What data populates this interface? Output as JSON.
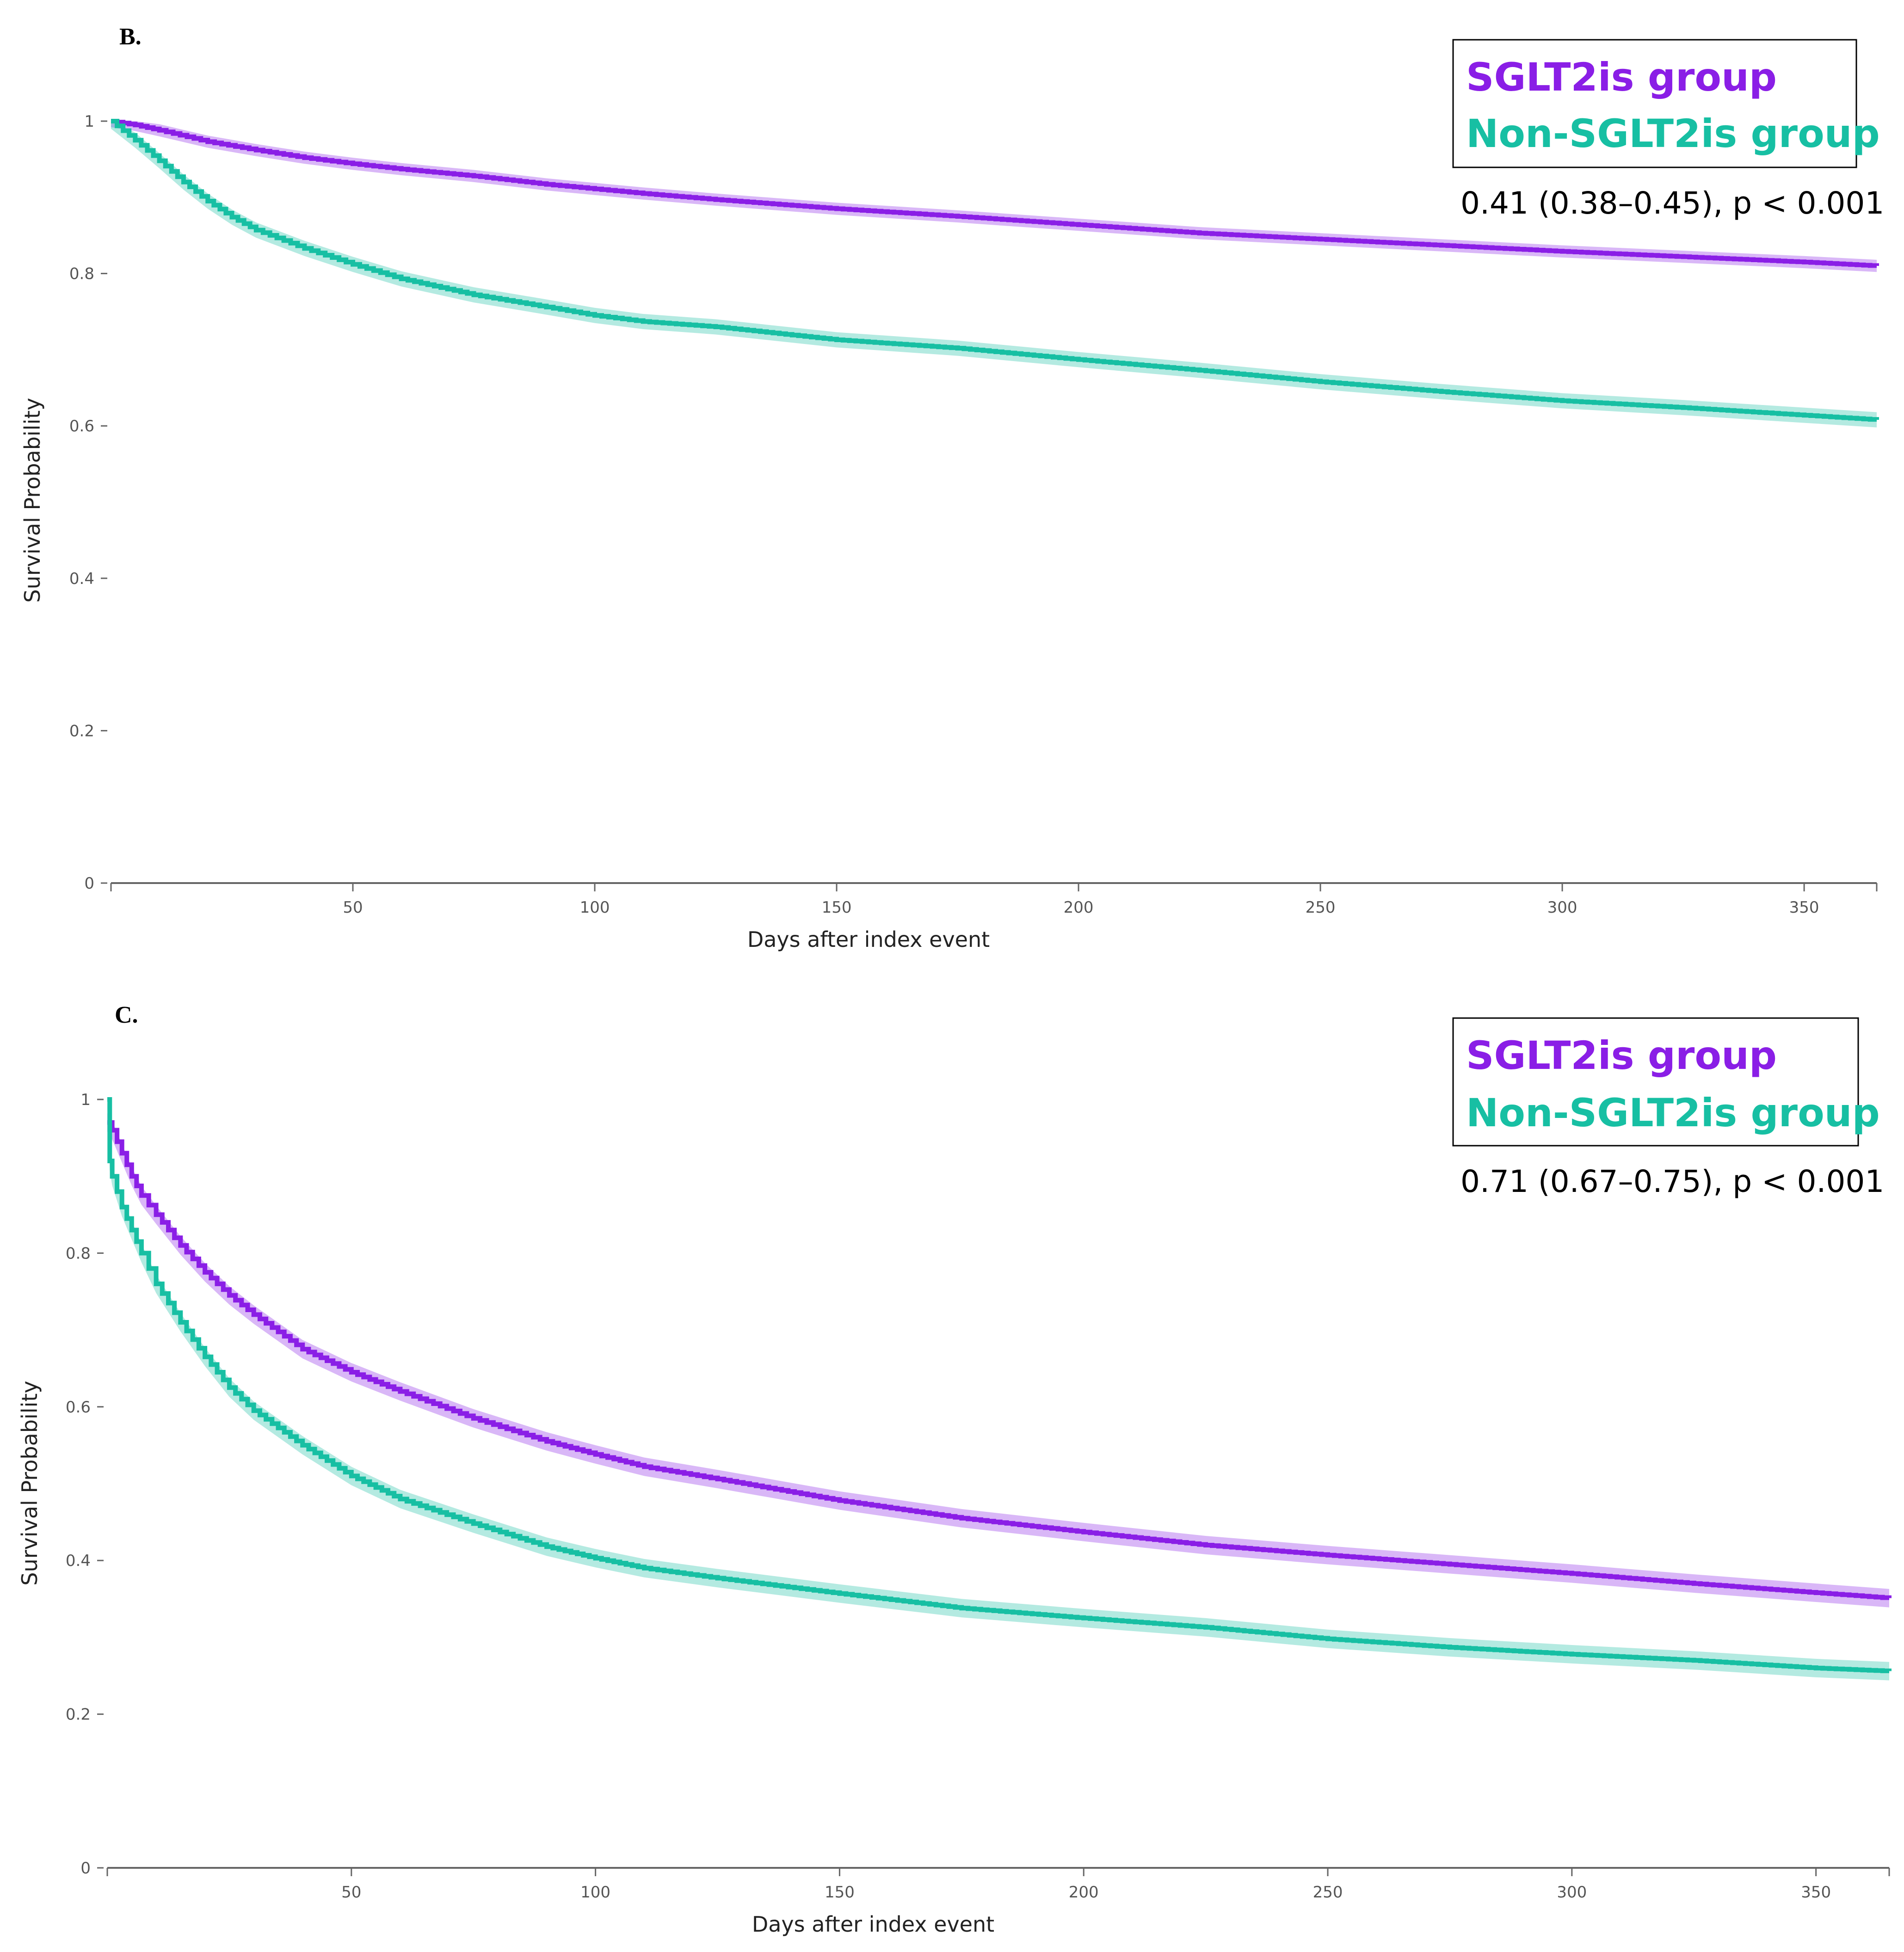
{
  "colors": {
    "sglt2": "#8a1ee6",
    "non_sglt2": "#17bfa3",
    "axis": "#666666"
  },
  "chart_data": [
    {
      "type": "line",
      "panel": "B.",
      "title": "",
      "xlabel": "Days after index event",
      "ylabel": "Survival Probability",
      "xlim": [
        0,
        365
      ],
      "ylim": [
        0,
        1
      ],
      "xticks": [
        50,
        100,
        150,
        200,
        250,
        300,
        350
      ],
      "yticks": [
        0,
        0.2,
        0.4,
        0.6,
        0.8,
        1
      ],
      "ytick_labels": [
        "0",
        "0.2",
        "0.4",
        "0.6",
        "0.8",
        "1"
      ],
      "grid": false,
      "legend": "top-right",
      "hr_text": "0.41 (0.38–0.45), p < 0.001",
      "series": [
        {
          "name": "SGLT2is group",
          "x": [
            0,
            5,
            10,
            20,
            30,
            40,
            50,
            60,
            75,
            90,
            100,
            110,
            125,
            150,
            175,
            200,
            225,
            250,
            275,
            300,
            325,
            350,
            365
          ],
          "y": [
            1.0,
            0.995,
            0.988,
            0.973,
            0.962,
            0.952,
            0.944,
            0.937,
            0.928,
            0.917,
            0.911,
            0.905,
            0.897,
            0.885,
            0.875,
            0.864,
            0.853,
            0.845,
            0.837,
            0.829,
            0.822,
            0.815,
            0.81
          ],
          "band": 0.008
        },
        {
          "name": "Non-SGLT2is group",
          "x": [
            0,
            5,
            10,
            15,
            20,
            25,
            30,
            40,
            50,
            60,
            75,
            90,
            100,
            110,
            125,
            150,
            175,
            200,
            225,
            250,
            275,
            300,
            325,
            350,
            365
          ],
          "y": [
            1.0,
            0.975,
            0.948,
            0.92,
            0.895,
            0.874,
            0.857,
            0.833,
            0.812,
            0.793,
            0.772,
            0.756,
            0.745,
            0.737,
            0.73,
            0.713,
            0.702,
            0.687,
            0.673,
            0.658,
            0.645,
            0.633,
            0.624,
            0.614,
            0.608
          ],
          "band": 0.01
        }
      ]
    },
    {
      "type": "line",
      "panel": "C.",
      "title": "",
      "xlabel": "Days after index event",
      "ylabel": "Survival Probability",
      "xlim": [
        0,
        365
      ],
      "ylim": [
        0,
        1
      ],
      "xticks": [
        50,
        100,
        150,
        200,
        250,
        300,
        350
      ],
      "yticks": [
        0,
        0.2,
        0.4,
        0.6,
        0.8,
        1
      ],
      "ytick_labels": [
        "0",
        "0.2",
        "0.4",
        "0.6",
        "0.8",
        "1"
      ],
      "grid": false,
      "legend": "top-right",
      "hr_text": "0.71 (0.67–0.75), p < 0.001",
      "series": [
        {
          "name": "SGLT2is group",
          "x": [
            0,
            1,
            3,
            5,
            7,
            10,
            15,
            20,
            25,
            30,
            40,
            50,
            60,
            75,
            90,
            100,
            110,
            125,
            150,
            175,
            200,
            225,
            250,
            275,
            300,
            325,
            350,
            365
          ],
          "y": [
            0.97,
            0.96,
            0.93,
            0.9,
            0.875,
            0.85,
            0.81,
            0.775,
            0.745,
            0.72,
            0.675,
            0.645,
            0.62,
            0.585,
            0.555,
            0.538,
            0.522,
            0.506,
            0.478,
            0.455,
            0.437,
            0.42,
            0.407,
            0.395,
            0.383,
            0.37,
            0.358,
            0.351
          ],
          "band": 0.012
        },
        {
          "name": "Non-SGLT2is group",
          "x": [
            0,
            0.5,
            1,
            2,
            3,
            5,
            7,
            10,
            15,
            20,
            25,
            30,
            40,
            50,
            60,
            75,
            90,
            100,
            110,
            125,
            150,
            175,
            200,
            225,
            250,
            275,
            300,
            325,
            350,
            365
          ],
          "y": [
            1.0,
            0.92,
            0.9,
            0.88,
            0.86,
            0.83,
            0.8,
            0.76,
            0.71,
            0.665,
            0.625,
            0.595,
            0.55,
            0.51,
            0.48,
            0.448,
            0.418,
            0.403,
            0.39,
            0.377,
            0.357,
            0.338,
            0.325,
            0.313,
            0.298,
            0.287,
            0.278,
            0.27,
            0.26,
            0.256
          ],
          "band": 0.012
        }
      ]
    }
  ]
}
